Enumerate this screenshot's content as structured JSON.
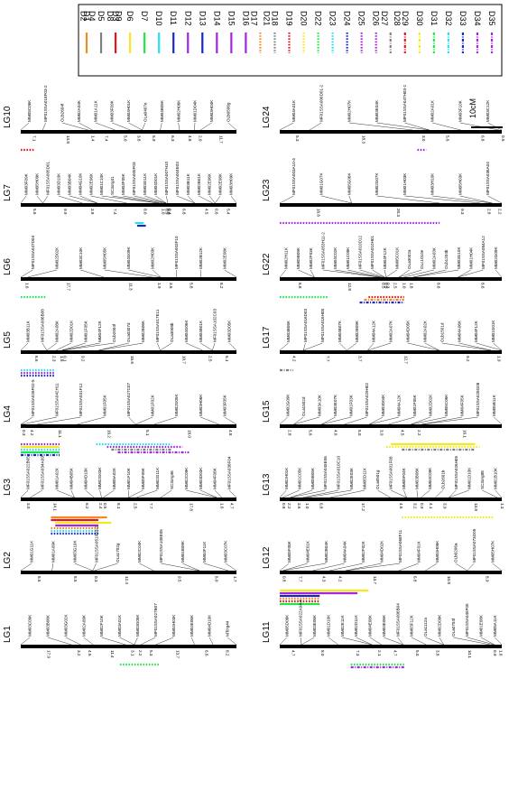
{
  "legend": {
    "items": [
      {
        "label": "D1",
        "color": "#f4891f",
        "style": "solid"
      },
      {
        "label": "D2",
        "color": "#7f7f7f",
        "style": "solid"
      },
      {
        "label": "D4",
        "color": "#7f7f7f",
        "style": "solid"
      },
      {
        "label": "D5",
        "color": "#7f7f7f",
        "style": "solid"
      },
      {
        "label": "D8",
        "color": "#7f7f7f",
        "style": "solid"
      },
      {
        "label": "D9",
        "color": "#7f7f7f",
        "style": "solid"
      },
      {
        "label": "D3",
        "color": "#e8141d",
        "style": "solid"
      },
      {
        "label": "D6",
        "color": "#f2ea1f",
        "style": "solid"
      },
      {
        "label": "D7",
        "color": "#1ee84b",
        "style": "solid"
      },
      {
        "label": "D10",
        "color": "#26e1ea",
        "style": "solid"
      },
      {
        "label": "D11",
        "color": "#1726c9",
        "style": "solid"
      },
      {
        "label": "D12",
        "color": "#a524e0",
        "style": "solid"
      },
      {
        "label": "D13",
        "color": "#1726c9",
        "style": "solid"
      },
      {
        "label": "D14",
        "color": "#a524e0",
        "style": "solid"
      },
      {
        "label": "D15",
        "color": "#a524e0",
        "style": "solid"
      },
      {
        "label": "D16",
        "color": "#a524e0",
        "style": "solid"
      },
      {
        "label": "D17",
        "color": "#f4891f",
        "style": "dotted"
      },
      {
        "label": "D21",
        "color": "#f4891f",
        "style": "dotted"
      },
      {
        "label": "D18",
        "color": "#7f7f7f",
        "style": "dotted"
      },
      {
        "label": "D19",
        "color": "#e8141d",
        "style": "dotted"
      },
      {
        "label": "D20",
        "color": "#f2ea1f",
        "style": "dotted"
      },
      {
        "label": "D22",
        "color": "#1ee84b",
        "style": "dotted"
      },
      {
        "label": "D23",
        "color": "#26e1ea",
        "style": "dotted"
      },
      {
        "label": "D24",
        "color": "#1726c9",
        "style": "dotted"
      },
      {
        "label": "D25",
        "color": "#a524e0",
        "style": "dotted"
      },
      {
        "label": "D26",
        "color": "#a524e0",
        "style": "dotted"
      },
      {
        "label": "D27",
        "color": "#7f7f7f",
        "style": "dashdot"
      },
      {
        "label": "D28",
        "color": "#7f7f7f",
        "style": "dashdot"
      },
      {
        "label": "D29",
        "color": "#e8141d",
        "style": "dashdot"
      },
      {
        "label": "D30",
        "color": "#f2ea1f",
        "style": "dashdot"
      },
      {
        "label": "D31",
        "color": "#1ee84b",
        "style": "dashdot"
      },
      {
        "label": "D32",
        "color": "#26e1ea",
        "style": "dashdot"
      },
      {
        "label": "D33",
        "color": "#1726c9",
        "style": "dashdot"
      },
      {
        "label": "D34",
        "color": "#a524e0",
        "style": "dashdot"
      },
      {
        "label": "D35",
        "color": "#a524e0",
        "style": "dashdot"
      }
    ]
  },
  "scale_bar": {
    "label": "10cM"
  },
  "linkage_groups": [
    {
      "name": "LG10",
      "markers": [
        "MM05C06K",
        "MF01SSA018F03-2",
        "OLb2604f",
        "MM02A04K",
        "MM01A11K",
        "MM03F09K",
        "MM04H01K",
        "OLa0407e",
        "MM04B05K",
        "MM02H06K",
        "MM01D04K",
        "MM03H04K",
        "OLb0506g"
      ],
      "distances": [
        "7.1",
        "14.8",
        "1.4",
        "7.4",
        "5.0",
        "3.8",
        "5.9",
        "6.3",
        "4.8",
        "2.0",
        "11.7"
      ]
    },
    {
      "name": "LG7",
      "markers": [
        "MM03F09K",
        "MM05H09K",
        "MF01SSA005D01",
        "MM03D10K",
        "MM03B04K",
        "MM04G10K",
        "MM02E06K",
        "MM01C10K",
        "SC3org41",
        "MM04F05K",
        "MF01SSA005F03",
        "MM03G11K",
        "MM04D01K",
        "MF01SSA007H10",
        "MF01SSA004E03",
        "MM03B11K",
        "MM02B01K",
        "MM02E06K",
        "MM02E08K",
        "MM03H09K"
      ],
      "distances": [
        "5.6",
        "9.9",
        "3.8",
        "7.4",
        "8.0",
        "1.0",
        "0.9",
        "0.0",
        "0.4",
        "6.8",
        "4.5",
        "0.6",
        "5.4"
      ]
    },
    {
      "name": "LG6",
      "markers": [
        "MF01SSA047D04",
        "MM02D02K",
        "MM03C10K",
        "MM05H05K",
        "MM04G09K",
        "MM02H03K",
        "MF01SSA003F10",
        "MM02B12K",
        "MM02E08K"
      ],
      "distances": [
        "1.6",
        "17.7",
        "11.3",
        "1.9",
        "3.6",
        "5.8",
        "8.2"
      ]
    },
    {
      "name": "LG5",
      "markers": [
        "MM03B11K",
        "MF01SSA006B08",
        "MM02A08K",
        "MM02D01K",
        "MM01F05K",
        "MM04F12K",
        "OLb2004f",
        "OLa0307d",
        "MM02B06K",
        "MF01SSA017E11",
        "OLa3008b",
        "MM04G06K",
        "MM04B01K",
        "MF01SSA102C03",
        "MM03D05K"
      ],
      "distances": [
        "6.6",
        "2.3",
        "1.5",
        "0.1",
        "9.2",
        "15.6",
        "10.7",
        "2.5",
        "6.1"
      ]
    },
    {
      "name": "LG4",
      "markers": [
        "MF01SSA026F02-5",
        "MF01SSA042H11",
        "MF01SSA031F12",
        "MM01F05K",
        "MF01SSA027C07",
        "MM01F02K",
        "MM02G05K",
        "MM03H06K",
        "MM03F05K"
      ],
      "distances": [
        "0.3",
        "4.2",
        "11.1",
        "16.2",
        "5.1",
        "18.0",
        "4.8"
      ]
    },
    {
      "name": "LG3",
      "markers": [
        "MF01SSA022B05",
        "MF01SSA034A09",
        "MM01A02K",
        "MM04B05K",
        "MM04D10K",
        "MM02G03K",
        "MM05A02K",
        "MM01F10K",
        "MM05F09K",
        "MM02G11K",
        "SC3org46",
        "MM02C09K",
        "MM03D03K",
        "MM04F08K",
        "MF01SSA038F04"
      ],
      "distances": [
        "3.0",
        "14.1",
        "6.2",
        "2.4",
        "0.5",
        "8.1",
        "2.5",
        "7.7",
        "17.8",
        "1.6",
        "4.7"
      ]
    },
    {
      "name": "LG2",
      "markers": [
        "MM01G11K",
        "MM01A09K",
        "MM03G10K",
        "MF01SSA051F03-2",
        "OLa1702g",
        "MM02C04K",
        "MF01SSA108E05",
        "MM01B09K",
        "MM04F11K",
        "MM03C07K"
      ],
      "distances": [
        "6.5",
        "8.5",
        "0.3",
        "12.4",
        "9.5",
        "6.0",
        "1.7"
      ]
    },
    {
      "name": "LG1",
      "markers": [
        "MM03C09K",
        "MM03B06K",
        "MM03G02K",
        "MM02A09K",
        "MM02F10K",
        "MM03A01K",
        "MM03G05K",
        "MF01SSA027B07",
        "MM04H03K",
        "MM04E06K",
        "MM04D10K",
        "MTctg44"
      ],
      "distances": [
        "17.9",
        "3.2",
        "4.5",
        "11.4",
        "3.1",
        "2.2",
        "5.3",
        "13.7",
        "6.6",
        "8.2"
      ]
    },
    {
      "name": "LG24",
      "markers": [
        "MM04A01K",
        "MF01SSA006D01-2",
        "MM02H07K",
        "MM03E04K",
        "MF01SSA047H03-2",
        "MM02A01K",
        "MM03F10K",
        "MM03C12K"
      ],
      "distances": [
        "5.3",
        "18.3",
        "3.0",
        "5.6",
        "6.8",
        "0.5"
      ]
    },
    {
      "name": "LG23",
      "markers": [
        "MF01SSA003A10-4",
        "MM01G07K",
        "MM05G06K",
        "MM02G07K",
        "MM01H03K",
        "MM03H10K",
        "MM05H03K",
        "MF01SSA036A04"
      ],
      "distances": [
        "16.6",
        "20.3",
        "9.3",
        "2.8",
        "2.2"
      ]
    },
    {
      "name": "LG22",
      "markers": [
        "MM02H11K",
        "MM05B09K",
        "MM02F03K",
        "MF01SSA053H11-2",
        "MM04C02K",
        "MM01C08K",
        "MF01SSA010D12",
        "MF01SSA010H01",
        "MM04F12K",
        "MM05C01K",
        "OLa3002a",
        "OLc1010e",
        "MM02A03K",
        "OLb1204b",
        "MM03G10K",
        "MM01H04K",
        "MF01SSA084A12",
        "MM02G09K"
      ],
      "distances": [
        "6.8",
        "12.8",
        "0.5",
        "0.5",
        "0.3",
        "2.5",
        "1.0",
        "1.8",
        "8.8",
        "8.6"
      ]
    },
    {
      "name": "LG17",
      "markers": [
        "MM03B06K",
        "MF01SSA016D03",
        "MF01SSA016H08",
        "MM04B07K",
        "MM02B09K",
        "MM04A12K",
        "MM02A07K",
        "MM04D05K",
        "MM02A02K",
        "OLb1501d",
        "MM04A06K",
        "MM04F12K",
        "MM01G01K"
      ],
      "distances": [
        "4.2",
        "7.7",
        "3.7",
        "12.7",
        "9.2",
        "1.9"
      ]
    },
    {
      "name": "LG15",
      "markers": [
        "MM02G09K",
        "OLa1502d",
        "MM03A10K",
        "MM03E07K",
        "MM01F03K",
        "MF01SSA029H02",
        "MM03D04K",
        "MM04A12K",
        "MM01F05K",
        "MM02D02K",
        "MM05C06K",
        "MM04F05K",
        "MF01SSA028G08",
        "MM05B11K"
      ],
      "distances": [
        "2.8",
        "5.6",
        "4.6",
        "5.0",
        "3.9",
        "4.5",
        "2.2",
        "16.1"
      ]
    },
    {
      "name": "LG13",
      "markers": [
        "MM02H01K",
        "MM01C05K",
        "MM05B05K",
        "MF01SSA045E06",
        "MF01SSA010C10",
        "MM02E03K",
        "MM05D11K",
        "OLa0501g",
        "MF01SSA001F08",
        "MM05F04K",
        "MM03B08K",
        "MM04C09K",
        "OLb2601b",
        "MF01SSA026H05",
        "MM01D10K",
        "SC3org88",
        "MM01B10K"
      ],
      "distances": [
        "0.8",
        "2.2",
        "3.6",
        "1.0",
        "6.8",
        "17.2",
        "4.6",
        "3.2",
        "0.9",
        "4.1",
        "3.9",
        "13.8",
        "1.3"
      ]
    },
    {
      "name": "LG12",
      "markers": [
        "MM05F08K",
        "MM04E01K",
        "MM02B04K",
        "MM04A04K",
        "MM02F02K",
        "MM04D02K",
        "MF01SSA068F11",
        "MM04F01K",
        "MM04H06K",
        "OLb0206a",
        "MF01SSA073G05",
        "MM05H07K"
      ],
      "distances": [
        "0.8",
        "7.7",
        "4.3",
        "4.2",
        "13.7",
        "6.8",
        "10.8",
        "8.9"
      ]
    },
    {
      "name": "LG11",
      "markers": [
        "MM05D06K",
        "MF01SSA022A04-4",
        "MM03E06K",
        "MM01D10K",
        "MM02E11K",
        "MM02D11K",
        "MM04E08K",
        "MM03E06K",
        "MF01SSA006B04",
        "MM03F12K",
        "OLa1112a",
        "MM02D09K",
        "OLa0704f",
        "MF01SSA045F05",
        "MM01E08K",
        "MM05A11K"
      ],
      "distances": [
        "4.7",
        "8.0",
        "7.3",
        "2.1",
        "4.7",
        "5.0",
        "3.8",
        "10.1",
        "0.9",
        "1.6"
      ]
    }
  ]
}
